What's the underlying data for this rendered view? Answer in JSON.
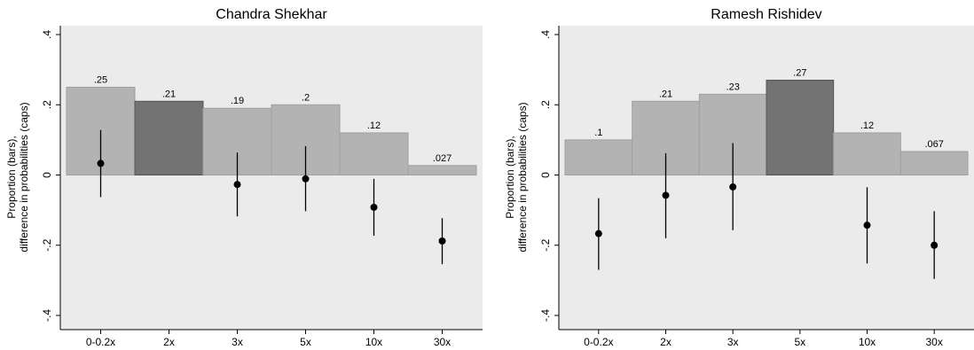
{
  "chart_data": [
    {
      "type": "bar",
      "title": "Chandra Shekhar",
      "ylabel_lines": [
        "Proportion (bars),",
        "difference in probabilities (caps)"
      ],
      "categories": [
        "0-0.2x",
        "2x",
        "3x",
        "5x",
        "10x",
        "30x"
      ],
      "yticks": [
        ".4",
        ".2",
        "0",
        "-.2",
        "-.4"
      ],
      "ylim": [
        -0.4,
        0.4
      ],
      "grid": false,
      "series": [
        {
          "values": [
            0.25,
            0.21,
            0.19,
            0.2,
            0.12,
            0.027
          ],
          "labels": [
            ".25",
            ".21",
            ".19",
            ".2",
            ".12",
            ".027"
          ],
          "highlight_index": 1
        },
        {
          "points": [
            0.033,
            null,
            -0.027,
            -0.011,
            -0.092,
            -0.188
          ],
          "ci_low": [
            -0.063,
            null,
            -0.118,
            -0.103,
            -0.173,
            -0.254
          ],
          "ci_high": [
            0.128,
            null,
            0.064,
            0.082,
            -0.011,
            -0.123
          ]
        }
      ],
      "colors": {
        "bar": "#b3b3b3",
        "bar_highlight": "#737373",
        "plot_bg": "#ebebeb",
        "point": "#000000"
      }
    },
    {
      "type": "bar",
      "title": "Ramesh Rishidev",
      "ylabel_lines": [
        "Proportion (bars),",
        "difference in probabilities (caps)"
      ],
      "categories": [
        "0-0.2x",
        "2x",
        "3x",
        "5x",
        "10x",
        "30x"
      ],
      "yticks": [
        ".4",
        ".2",
        "0",
        "-.2",
        "-.4"
      ],
      "ylim": [
        -0.4,
        0.4
      ],
      "grid": false,
      "series": [
        {
          "values": [
            0.1,
            0.21,
            0.23,
            0.27,
            0.12,
            0.067
          ],
          "labels": [
            ".1",
            ".21",
            ".23",
            ".27",
            ".12",
            ".067"
          ],
          "highlight_index": 3
        },
        {
          "points": [
            -0.167,
            -0.058,
            -0.034,
            null,
            -0.143,
            -0.2
          ],
          "ci_low": [
            -0.27,
            -0.18,
            -0.157,
            null,
            -0.252,
            -0.296
          ],
          "ci_high": [
            -0.066,
            0.062,
            0.091,
            null,
            -0.035,
            -0.103
          ]
        }
      ],
      "colors": {
        "bar": "#b3b3b3",
        "bar_highlight": "#737373",
        "plot_bg": "#ebebeb",
        "point": "#000000"
      }
    }
  ]
}
